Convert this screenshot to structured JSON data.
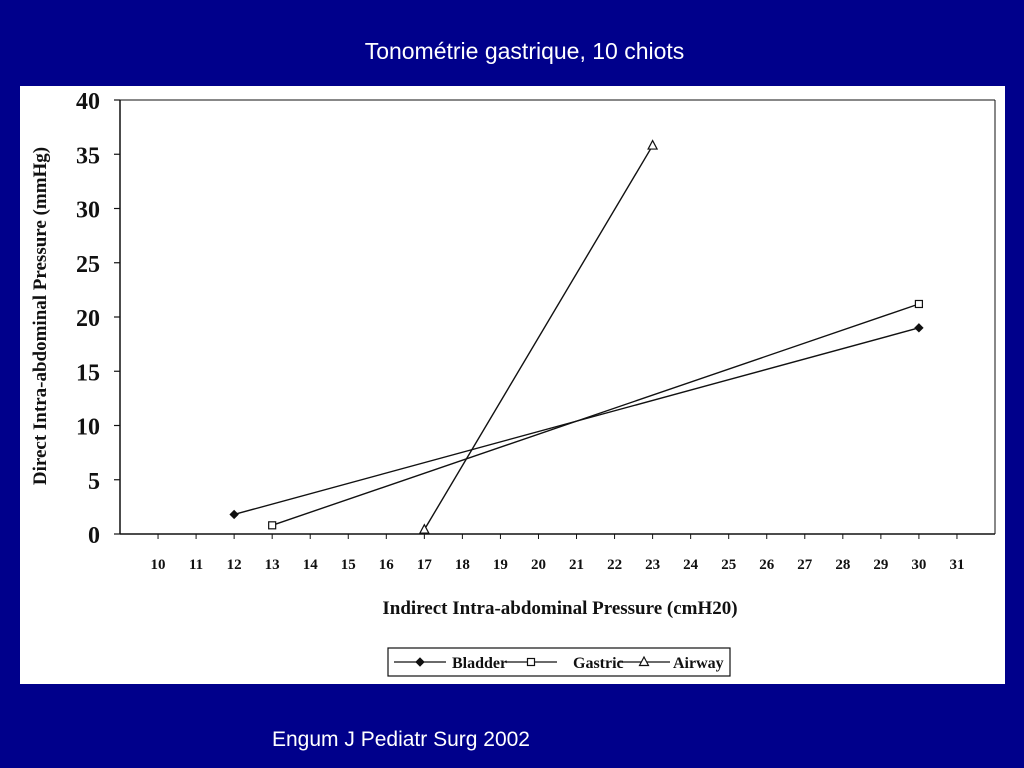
{
  "slide": {
    "title": "Tonométrie gastrique, 10 chiots",
    "citation": "Engum J Pediatr Surg 2002"
  },
  "colors": {
    "background": "#00008b",
    "panel": "#ffffff",
    "ink": "#111111"
  },
  "chart_data": {
    "type": "line",
    "xlabel": "Indirect Intra-abdominal Pressure (cmH20)",
    "ylabel": "Direct Intra-abdominal Pressure (mmHg)",
    "xlim": [
      9,
      32
    ],
    "ylim": [
      0,
      40
    ],
    "x_ticks": [
      10,
      11,
      12,
      13,
      14,
      15,
      16,
      17,
      18,
      19,
      20,
      21,
      22,
      23,
      24,
      25,
      26,
      27,
      28,
      29,
      30,
      31
    ],
    "y_ticks": [
      0,
      5,
      10,
      15,
      20,
      25,
      30,
      35,
      40
    ],
    "grid": false,
    "legend_position": "bottom-center",
    "series": [
      {
        "name": "Bladder",
        "marker": "diamond-filled",
        "points": [
          [
            12,
            1.8
          ],
          [
            30,
            19
          ]
        ]
      },
      {
        "name": "Gastric",
        "marker": "square-open",
        "points": [
          [
            13,
            0.8
          ],
          [
            30,
            21.2
          ]
        ]
      },
      {
        "name": "Airway",
        "marker": "triangle-open",
        "points": [
          [
            17,
            0.4
          ],
          [
            23,
            35.8
          ]
        ]
      }
    ]
  }
}
